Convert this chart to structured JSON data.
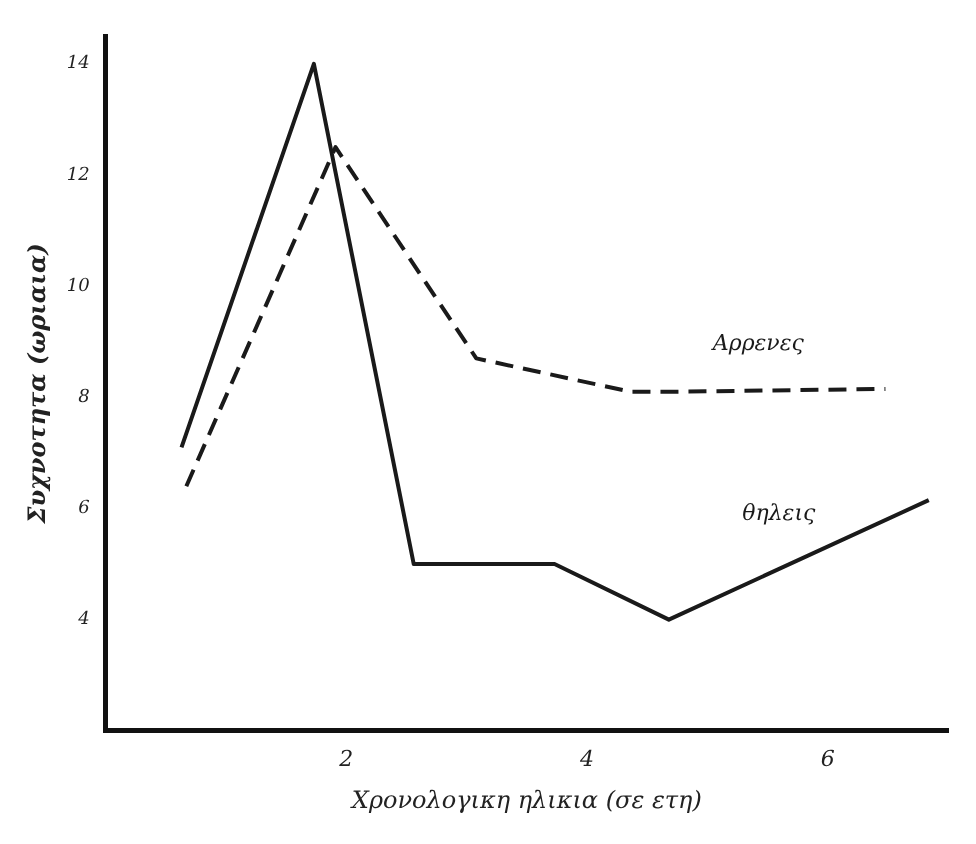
{
  "chart_data": {
    "type": "line",
    "xlabel": "Χρονολογικη ηλικια (σε ετη)",
    "ylabel": "Συχνοτητα (ωριαια)",
    "series": [
      {
        "name": "Αρρενες",
        "color": "#1a1a1a",
        "line_style": "dashed",
        "x": [
          0.67,
          1.91,
          3.08,
          4.36,
          4.7,
          6.48
        ],
        "values": [
          6.4,
          12.5,
          8.7,
          8.1,
          8.1,
          8.15
        ]
      },
      {
        "name": "θηλεις",
        "color": "#1a1a1a",
        "line_style": "solid",
        "x": [
          0.63,
          1.73,
          2.56,
          3.73,
          4.68,
          6.84
        ],
        "values": [
          7.1,
          14,
          5,
          5,
          4,
          6.15
        ]
      }
    ],
    "xlim": [
      0,
      7
    ],
    "xticks": [
      2,
      4,
      6
    ],
    "ylim": [
      2,
      14.5
    ],
    "yticks": [
      4,
      6,
      8,
      10,
      12,
      14
    ],
    "grid": false,
    "legend": false,
    "marker": "none"
  }
}
